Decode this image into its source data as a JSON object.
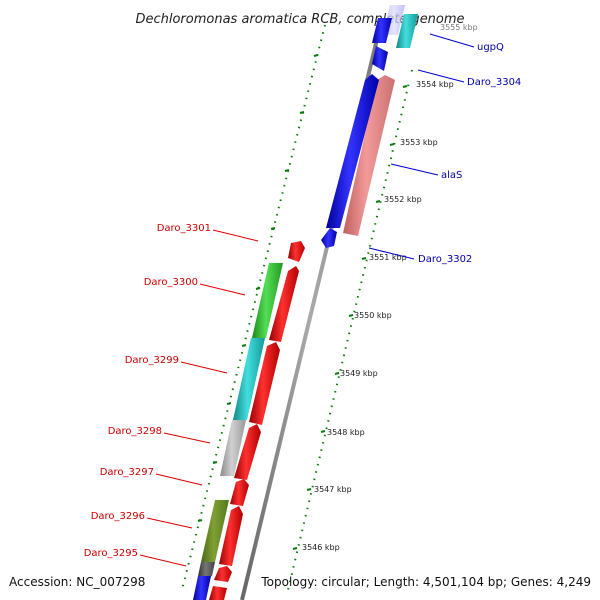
{
  "header": {
    "title": "Dechloromonas aromatica RCB, complete genome"
  },
  "footer": {
    "accession": "Accession: NC_007298",
    "summary": "Topology: circular; Length: 4,501,104 bp; Genes: 4,249"
  },
  "colors": {
    "backbone": "#888888",
    "tick_green": "#0a7a0a",
    "label_red": "#cc0000",
    "label_blue": "#0000aa",
    "gene_red": "#ff0000",
    "gene_blue": "#0000ff",
    "gene_green": "#33cc33",
    "gene_cyan": "#22cccc",
    "gene_grey": "#bbbbbb",
    "gene_pink": "#ee8888",
    "gene_olive": "#6b8e23",
    "gene_darkgrey": "#555555"
  },
  "scale": {
    "top_partial_label": "3555 kbp",
    "labels": [
      "3554 kbp",
      "3553 kbp",
      "3552 kbp",
      "3551 kbp",
      "3550 kbp",
      "3549 kbp",
      "3548 kbp",
      "3547 kbp",
      "3546 kbp"
    ]
  },
  "labels_left": [
    "Daro_3301",
    "Daro_3300",
    "Daro_3299",
    "Daro_3298",
    "Daro_3297",
    "Daro_3296",
    "Daro_3295"
  ],
  "labels_right": [
    "ugpQ",
    "Daro_3304",
    "alaS",
    "Daro_3302"
  ]
}
